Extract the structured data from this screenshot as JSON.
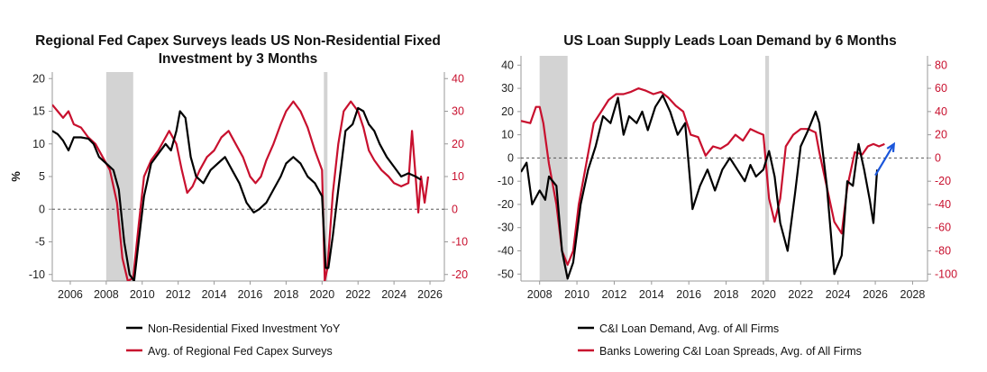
{
  "colors": {
    "black_series": "#000000",
    "red_series": "#c8102e",
    "recession_band": "#d3d3d3",
    "arrow": "#1a56db",
    "zero_line": "#555555"
  },
  "chart_data": [
    {
      "type": "line",
      "title_lines": [
        "Regional Fed Capex Surveys leads US Non-Residential Fixed",
        "Investment by 3 Months"
      ],
      "ylabel": "%",
      "xlim": [
        2005,
        2026.8
      ],
      "ylim_left": [
        -11,
        21
      ],
      "ylim_right": [
        -22,
        42
      ],
      "x_ticks": [
        "2006",
        "2008",
        "2010",
        "2012",
        "2014",
        "2016",
        "2018",
        "2020",
        "2022",
        "2024",
        "2026"
      ],
      "y_ticks_left": [
        "-10",
        "-5",
        "0",
        "5",
        "10",
        "15",
        "20"
      ],
      "y_ticks_right": [
        "-20",
        "-10",
        "0",
        "10",
        "20",
        "30",
        "40"
      ],
      "shaded_periods": [
        [
          2008.0,
          2009.5
        ],
        [
          2020.1,
          2020.3
        ]
      ],
      "series": [
        {
          "name": "Non-Residential Fixed Investment YoY",
          "axis": "left",
          "points": [
            [
              2005.0,
              12
            ],
            [
              2005.3,
              11.5
            ],
            [
              2005.6,
              10.5
            ],
            [
              2005.9,
              9
            ],
            [
              2006.2,
              11
            ],
            [
              2006.6,
              11
            ],
            [
              2007.0,
              10.8
            ],
            [
              2007.3,
              10
            ],
            [
              2007.6,
              8
            ],
            [
              2008.0,
              7
            ],
            [
              2008.4,
              6
            ],
            [
              2008.7,
              3
            ],
            [
              2009.0,
              -5
            ],
            [
              2009.3,
              -10
            ],
            [
              2009.55,
              -11
            ],
            [
              2009.8,
              -5
            ],
            [
              2010.1,
              2
            ],
            [
              2010.5,
              7
            ],
            [
              2010.9,
              8.5
            ],
            [
              2011.3,
              10
            ],
            [
              2011.6,
              9
            ],
            [
              2011.9,
              12
            ],
            [
              2012.1,
              15
            ],
            [
              2012.4,
              14
            ],
            [
              2012.7,
              8
            ],
            [
              2013.0,
              5
            ],
            [
              2013.4,
              4
            ],
            [
              2013.8,
              6
            ],
            [
              2014.2,
              7
            ],
            [
              2014.6,
              8
            ],
            [
              2015.0,
              6
            ],
            [
              2015.4,
              4
            ],
            [
              2015.8,
              1
            ],
            [
              2016.2,
              -0.5
            ],
            [
              2016.5,
              0
            ],
            [
              2016.9,
              1
            ],
            [
              2017.3,
              3
            ],
            [
              2017.7,
              5
            ],
            [
              2018.0,
              7
            ],
            [
              2018.4,
              8
            ],
            [
              2018.8,
              7
            ],
            [
              2019.2,
              5
            ],
            [
              2019.6,
              4
            ],
            [
              2020.0,
              2
            ],
            [
              2020.2,
              -9
            ],
            [
              2020.35,
              -9
            ],
            [
              2020.6,
              -4
            ],
            [
              2020.9,
              3
            ],
            [
              2021.3,
              12
            ],
            [
              2021.7,
              13
            ],
            [
              2022.0,
              15.5
            ],
            [
              2022.3,
              15
            ],
            [
              2022.6,
              13
            ],
            [
              2022.9,
              12
            ],
            [
              2023.2,
              10
            ],
            [
              2023.6,
              8
            ],
            [
              2024.0,
              6.5
            ],
            [
              2024.4,
              5
            ],
            [
              2024.8,
              5.5
            ],
            [
              2025.2,
              5
            ],
            [
              2025.5,
              4.5
            ]
          ]
        },
        {
          "name": "Avg. of Regional Fed Capex Surveys",
          "axis": "right",
          "points": [
            [
              2005.0,
              32
            ],
            [
              2005.3,
              30
            ],
            [
              2005.6,
              28
            ],
            [
              2005.9,
              30
            ],
            [
              2006.2,
              26
            ],
            [
              2006.6,
              25
            ],
            [
              2007.0,
              22
            ],
            [
              2007.4,
              20
            ],
            [
              2007.8,
              16
            ],
            [
              2008.2,
              12
            ],
            [
              2008.6,
              2
            ],
            [
              2008.9,
              -15
            ],
            [
              2009.2,
              -22
            ],
            [
              2009.5,
              -21
            ],
            [
              2009.8,
              -5
            ],
            [
              2010.1,
              10
            ],
            [
              2010.5,
              15
            ],
            [
              2010.9,
              18
            ],
            [
              2011.2,
              21
            ],
            [
              2011.5,
              24
            ],
            [
              2011.9,
              20
            ],
            [
              2012.2,
              12
            ],
            [
              2012.5,
              5
            ],
            [
              2012.8,
              7
            ],
            [
              2013.2,
              12
            ],
            [
              2013.6,
              16
            ],
            [
              2014.0,
              18
            ],
            [
              2014.4,
              22
            ],
            [
              2014.8,
              24
            ],
            [
              2015.2,
              20
            ],
            [
              2015.6,
              16
            ],
            [
              2016.0,
              10
            ],
            [
              2016.3,
              8
            ],
            [
              2016.6,
              10
            ],
            [
              2016.9,
              15
            ],
            [
              2017.3,
              20
            ],
            [
              2017.7,
              26
            ],
            [
              2018.0,
              30
            ],
            [
              2018.4,
              33
            ],
            [
              2018.8,
              30
            ],
            [
              2019.2,
              25
            ],
            [
              2019.6,
              18
            ],
            [
              2020.0,
              12
            ],
            [
              2020.15,
              -22
            ],
            [
              2020.3,
              -18
            ],
            [
              2020.6,
              5
            ],
            [
              2020.9,
              20
            ],
            [
              2021.2,
              30
            ],
            [
              2021.6,
              33
            ],
            [
              2022.0,
              30
            ],
            [
              2022.3,
              25
            ],
            [
              2022.6,
              18
            ],
            [
              2022.9,
              15
            ],
            [
              2023.3,
              12
            ],
            [
              2023.7,
              10
            ],
            [
              2024.0,
              8
            ],
            [
              2024.4,
              7
            ],
            [
              2024.8,
              8
            ],
            [
              2025.0,
              24
            ],
            [
              2025.2,
              10
            ],
            [
              2025.35,
              -1
            ],
            [
              2025.5,
              10
            ],
            [
              2025.7,
              2
            ],
            [
              2025.9,
              10
            ]
          ]
        }
      ],
      "legend": [
        "Non-Residential Fixed Investment YoY",
        "Avg. of Regional Fed Capex Surveys"
      ]
    },
    {
      "type": "line",
      "title_lines": [
        "US Loan Supply Leads Loan Demand by 6 Months"
      ],
      "xlim": [
        2007,
        2028.8
      ],
      "ylim_left": [
        -53,
        44
      ],
      "ylim_right": [
        -106,
        88
      ],
      "x_ticks": [
        "2008",
        "2010",
        "2012",
        "2014",
        "2016",
        "2018",
        "2020",
        "2022",
        "2024",
        "2026",
        "2028"
      ],
      "y_ticks_left": [
        "-50",
        "-40",
        "-30",
        "-20",
        "-10",
        "0",
        "10",
        "20",
        "30",
        "40"
      ],
      "y_ticks_right": [
        "-100",
        "-80",
        "-60",
        "-40",
        "-20",
        "0",
        "20",
        "40",
        "60",
        "80"
      ],
      "shaded_periods": [
        [
          2008.0,
          2009.5
        ],
        [
          2020.1,
          2020.3
        ]
      ],
      "series": [
        {
          "name": "C&I Loan Demand, Avg. of All Firms",
          "axis": "left",
          "points": [
            [
              2007.0,
              -6
            ],
            [
              2007.3,
              -2
            ],
            [
              2007.6,
              -20
            ],
            [
              2008.0,
              -14
            ],
            [
              2008.3,
              -18
            ],
            [
              2008.5,
              -8
            ],
            [
              2008.9,
              -12
            ],
            [
              2009.2,
              -40
            ],
            [
              2009.5,
              -52
            ],
            [
              2009.8,
              -45
            ],
            [
              2010.2,
              -20
            ],
            [
              2010.6,
              -5
            ],
            [
              2011.0,
              5
            ],
            [
              2011.4,
              18
            ],
            [
              2011.8,
              15
            ],
            [
              2012.2,
              26
            ],
            [
              2012.5,
              10
            ],
            [
              2012.8,
              18
            ],
            [
              2013.2,
              15
            ],
            [
              2013.5,
              20
            ],
            [
              2013.8,
              12
            ],
            [
              2014.2,
              22
            ],
            [
              2014.6,
              27
            ],
            [
              2015.0,
              20
            ],
            [
              2015.4,
              10
            ],
            [
              2015.8,
              15
            ],
            [
              2016.2,
              -22
            ],
            [
              2016.6,
              -12
            ],
            [
              2017.0,
              -5
            ],
            [
              2017.4,
              -14
            ],
            [
              2017.8,
              -5
            ],
            [
              2018.2,
              0
            ],
            [
              2018.6,
              -5
            ],
            [
              2019.0,
              -10
            ],
            [
              2019.3,
              -3
            ],
            [
              2019.6,
              -8
            ],
            [
              2020.0,
              -5
            ],
            [
              2020.3,
              3
            ],
            [
              2020.6,
              -8
            ],
            [
              2020.9,
              -28
            ],
            [
              2021.3,
              -40
            ],
            [
              2021.7,
              -15
            ],
            [
              2022.0,
              5
            ],
            [
              2022.4,
              12
            ],
            [
              2022.8,
              20
            ],
            [
              2023.0,
              15
            ],
            [
              2023.4,
              -12
            ],
            [
              2023.8,
              -50
            ],
            [
              2024.2,
              -42
            ],
            [
              2024.5,
              -10
            ],
            [
              2024.8,
              -12
            ],
            [
              2025.1,
              6
            ],
            [
              2025.4,
              -5
            ],
            [
              2025.7,
              -18
            ],
            [
              2025.9,
              -28
            ],
            [
              2026.1,
              -5
            ]
          ]
        },
        {
          "name": "Banks Lowering C&I Loan Spreads, Avg. of All Firms",
          "axis": "right",
          "points": [
            [
              2007.0,
              32
            ],
            [
              2007.5,
              30
            ],
            [
              2007.8,
              44
            ],
            [
              2008.0,
              44
            ],
            [
              2008.2,
              30
            ],
            [
              2008.5,
              -5
            ],
            [
              2008.9,
              -40
            ],
            [
              2009.2,
              -80
            ],
            [
              2009.5,
              -92
            ],
            [
              2009.8,
              -80
            ],
            [
              2010.1,
              -40
            ],
            [
              2010.5,
              -5
            ],
            [
              2010.9,
              30
            ],
            [
              2011.3,
              40
            ],
            [
              2011.7,
              50
            ],
            [
              2012.1,
              55
            ],
            [
              2012.5,
              55
            ],
            [
              2012.9,
              57
            ],
            [
              2013.3,
              60
            ],
            [
              2013.7,
              58
            ],
            [
              2014.1,
              55
            ],
            [
              2014.5,
              57
            ],
            [
              2014.9,
              52
            ],
            [
              2015.3,
              45
            ],
            [
              2015.7,
              40
            ],
            [
              2016.1,
              20
            ],
            [
              2016.5,
              18
            ],
            [
              2016.9,
              2
            ],
            [
              2017.3,
              10
            ],
            [
              2017.7,
              8
            ],
            [
              2018.1,
              12
            ],
            [
              2018.5,
              20
            ],
            [
              2018.9,
              15
            ],
            [
              2019.3,
              25
            ],
            [
              2019.7,
              22
            ],
            [
              2020.0,
              20
            ],
            [
              2020.3,
              -35
            ],
            [
              2020.6,
              -55
            ],
            [
              2020.9,
              -35
            ],
            [
              2021.2,
              10
            ],
            [
              2021.6,
              20
            ],
            [
              2022.0,
              25
            ],
            [
              2022.4,
              25
            ],
            [
              2022.8,
              22
            ],
            [
              2023.0,
              5
            ],
            [
              2023.4,
              -25
            ],
            [
              2023.8,
              -55
            ],
            [
              2024.2,
              -65
            ],
            [
              2024.5,
              -25
            ],
            [
              2024.9,
              5
            ],
            [
              2025.3,
              3
            ],
            [
              2025.6,
              10
            ],
            [
              2025.9,
              12
            ],
            [
              2026.2,
              10
            ],
            [
              2026.5,
              12
            ]
          ]
        }
      ],
      "arrow": {
        "from": [
          2026.0,
          -15
        ],
        "to": [
          2027.0,
          12
        ]
      },
      "legend": [
        "C&I Loan Demand, Avg. of All Firms",
        "Banks Lowering C&I Loan Spreads, Avg. of All Firms"
      ]
    }
  ]
}
